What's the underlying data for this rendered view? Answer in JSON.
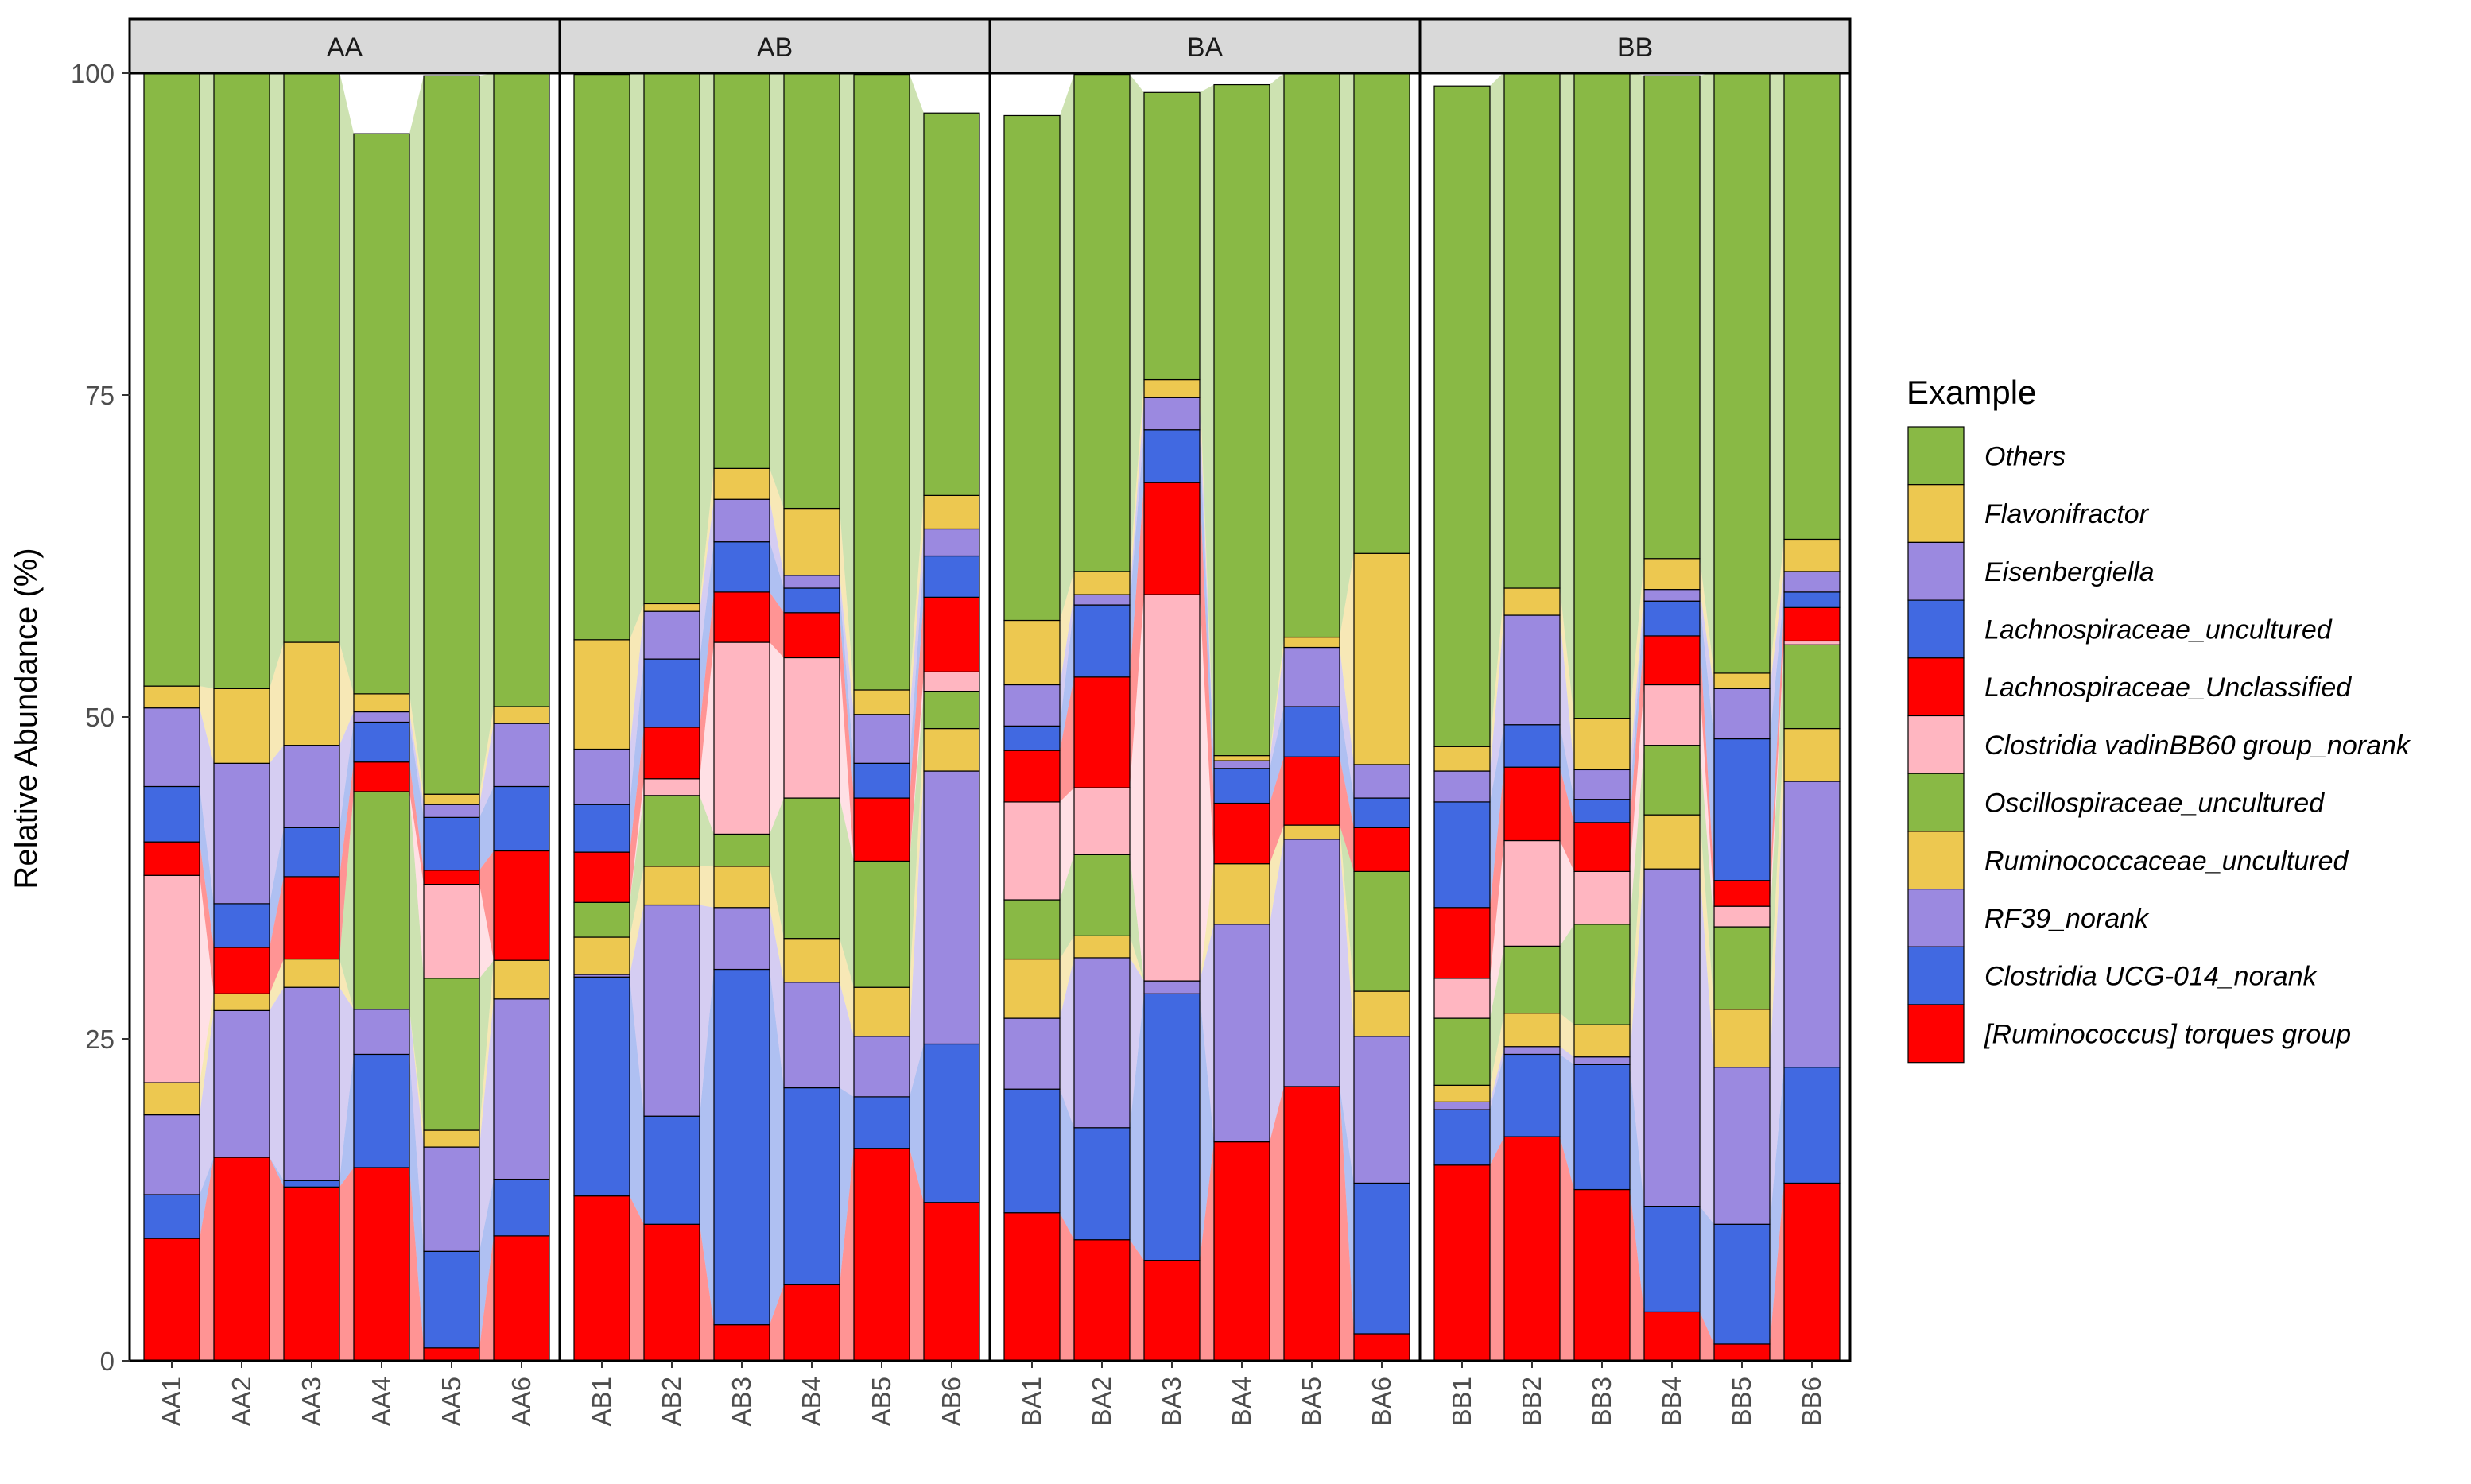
{
  "chart_data": {
    "type": "bar",
    "stacked": true,
    "alluvial_links": true,
    "ylabel": "Relative Abundance (%)",
    "xlabel": "",
    "ylim": [
      0,
      100
    ],
    "yticks": [
      0,
      25,
      50,
      75,
      100
    ],
    "grid": false,
    "legend_position": "right",
    "legend_title": "Example",
    "facets": [
      {
        "label": "AA",
        "samples": [
          "AA1",
          "AA2",
          "AA3",
          "AA4",
          "AA5",
          "AA6"
        ]
      },
      {
        "label": "AB",
        "samples": [
          "AB1",
          "AB2",
          "AB3",
          "AB4",
          "AB5",
          "AB6"
        ]
      },
      {
        "label": "BA",
        "samples": [
          "BA1",
          "BA2",
          "BA3",
          "BA4",
          "BA5",
          "BA6"
        ]
      },
      {
        "label": "BB",
        "samples": [
          "BB1",
          "BB2",
          "BB3",
          "BB4",
          "BB5",
          "BB6"
        ]
      }
    ],
    "series": [
      {
        "name": "[Ruminococcus] torques group",
        "color": "#FF0000",
        "values": [
          9.5,
          15.8,
          13.5,
          15,
          1,
          9.7,
          12.8,
          10.6,
          2.8,
          5.9,
          16.5,
          12.3,
          11.5,
          9.4,
          7.8,
          17,
          21.3,
          2.1,
          15.2,
          17.4,
          13.3,
          3.8,
          1.3,
          13.8
        ]
      },
      {
        "name": "Clostridia UCG-014_norank",
        "color": "#4169E1",
        "values": [
          3.4,
          0,
          0.5,
          8.8,
          7.5,
          4.4,
          17,
          8.4,
          27.6,
          15.3,
          4,
          12.3,
          9.6,
          8.7,
          20.7,
          0,
          0,
          11.7,
          4.3,
          6.4,
          9.7,
          8.2,
          9.3,
          9
        ]
      },
      {
        "name": "RF39_norank",
        "color": "#9B89E0",
        "values": [
          6.2,
          11.4,
          15,
          3.5,
          8.1,
          14,
          0.2,
          16.4,
          4.8,
          8.2,
          4.7,
          21.2,
          5.5,
          13.2,
          1,
          16.9,
          19.2,
          11.4,
          0.6,
          0.6,
          0.6,
          26.2,
          12.2,
          22.2
        ]
      },
      {
        "name": "Ruminococcaceae_uncultured",
        "color": "#EDC850",
        "values": [
          2.5,
          1.3,
          2.2,
          0,
          1.3,
          3,
          2.9,
          3,
          3.2,
          3.4,
          3.8,
          3.3,
          4.6,
          1.7,
          0,
          4.7,
          1.1,
          3.5,
          1.3,
          2.6,
          2.5,
          4.2,
          4.5,
          4.1
        ]
      },
      {
        "name": "Oscillospiraceae_uncultured",
        "color": "#89B945",
        "values": [
          0,
          0,
          0,
          16.9,
          11.8,
          0,
          2.7,
          5.5,
          2.5,
          10.9,
          9.8,
          2.9,
          4.6,
          6.3,
          0,
          0,
          0,
          9.3,
          5.2,
          5.2,
          7.8,
          5.4,
          6.4,
          6.5
        ]
      },
      {
        "name": "Clostridia vadinBB60 group_norank",
        "color": "#FFB6C1",
        "values": [
          16.1,
          0,
          0,
          0,
          7.3,
          0,
          0,
          1.3,
          14.9,
          10.9,
          0,
          1.5,
          7.6,
          5.2,
          30,
          0,
          0,
          0,
          3.1,
          8.2,
          4.1,
          4.7,
          1.6,
          0.3
        ]
      },
      {
        "name": "Lachnospiraceae_Unclassified",
        "color": "#FF0000",
        "values": [
          2.6,
          3.6,
          6.4,
          2.3,
          1.1,
          8.5,
          3.9,
          4,
          3.9,
          3.5,
          4.9,
          5.8,
          4,
          8.6,
          8.7,
          4.7,
          5.3,
          3.4,
          5.5,
          5.7,
          3.8,
          3.8,
          2,
          2.6
        ]
      },
      {
        "name": "Lachnospiraceae_uncultured",
        "color": "#4169E1",
        "values": [
          4.3,
          3.4,
          3.8,
          3.1,
          4.1,
          5,
          3.7,
          5.3,
          3.9,
          1.9,
          2.7,
          3.2,
          1.9,
          5.6,
          4.1,
          2.7,
          3.9,
          2.3,
          8.2,
          3.3,
          1.8,
          2.7,
          11,
          1.2
        ]
      },
      {
        "name": "Eisenbergiella",
        "color": "#9B89E0",
        "values": [
          6.1,
          10.9,
          6.4,
          0.8,
          1,
          4.9,
          4.3,
          3.7,
          3.3,
          1,
          3.8,
          2.1,
          3.2,
          0.8,
          2.5,
          0.6,
          4.6,
          2.6,
          2.4,
          8.5,
          2.3,
          0.9,
          3.9,
          1.6
        ]
      },
      {
        "name": "Flavonifractor",
        "color": "#EDC850",
        "values": [
          1.7,
          5.8,
          8,
          1.4,
          0.8,
          1.3,
          8.5,
          0.6,
          2.4,
          5.2,
          1.9,
          2.6,
          5,
          1.8,
          1.4,
          0.4,
          0.8,
          16.4,
          1.9,
          2.1,
          4,
          2.4,
          1.2,
          2.5
        ]
      },
      {
        "name": "Others",
        "color": "#89B945",
        "values": [
          47.6,
          47.8,
          44.3,
          43.5,
          55.8,
          49.2,
          43.9,
          41.2,
          30.7,
          33.8,
          47.8,
          29.7,
          39.2,
          38.6,
          22.3,
          52.1,
          43.8,
          37.3,
          51.3,
          40.1,
          50.2,
          37.5,
          46.7,
          36.2
        ]
      }
    ]
  }
}
